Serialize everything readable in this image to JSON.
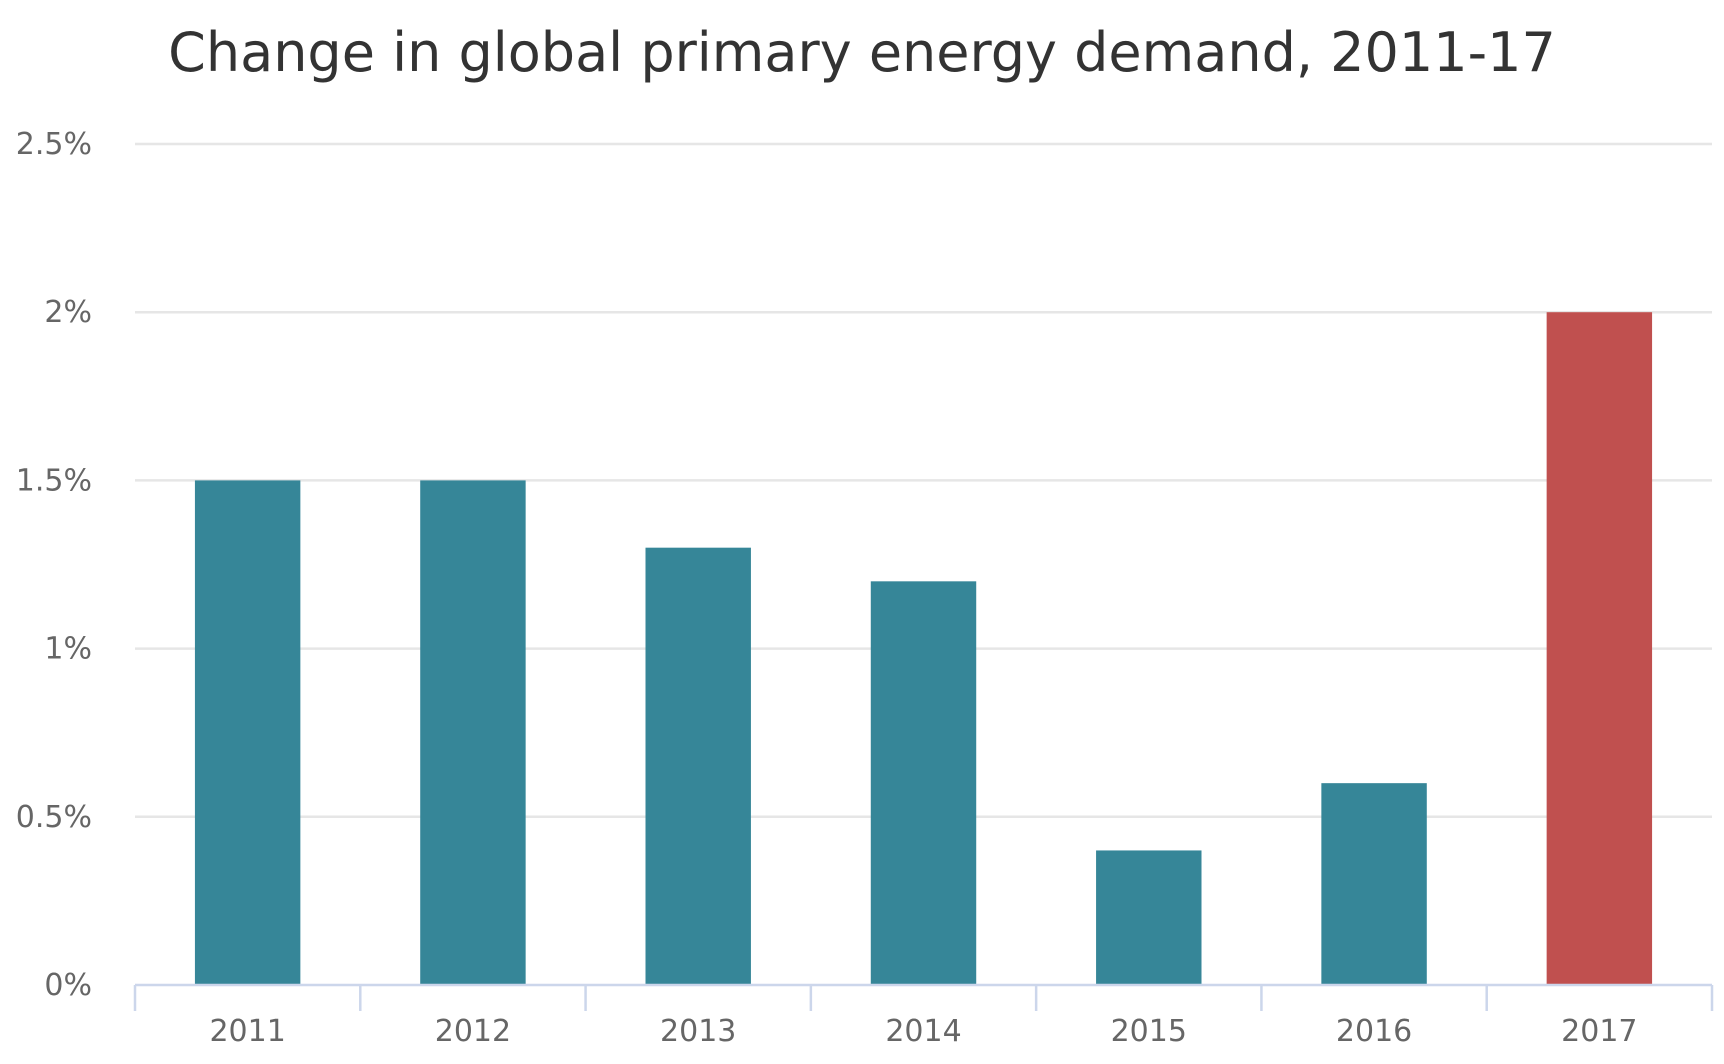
{
  "chart_data": {
    "type": "bar",
    "title": "Change in global primary energy demand, 2011-17",
    "categories": [
      "2011",
      "2012",
      "2013",
      "2014",
      "2015",
      "2016",
      "2017"
    ],
    "values": [
      1.5,
      1.5,
      1.3,
      1.2,
      0.4,
      0.6,
      2.0
    ],
    "bar_colors": [
      "#368698",
      "#368698",
      "#368698",
      "#368698",
      "#368698",
      "#368698",
      "#c0504f"
    ],
    "xlabel": "",
    "ylabel": "",
    "ylim": [
      0,
      2.5
    ],
    "yticks": [
      0,
      0.5,
      1,
      1.5,
      2,
      2.5
    ],
    "ytick_labels": [
      "0%",
      "0.5%",
      "1%",
      "1.5%",
      "2%",
      "2.5%"
    ],
    "grid": true,
    "legend": "none"
  },
  "colors": {
    "axis_line": "#ccd6eb",
    "gridline": "#e6e6e6",
    "text": "#666666",
    "title": "#333333"
  }
}
